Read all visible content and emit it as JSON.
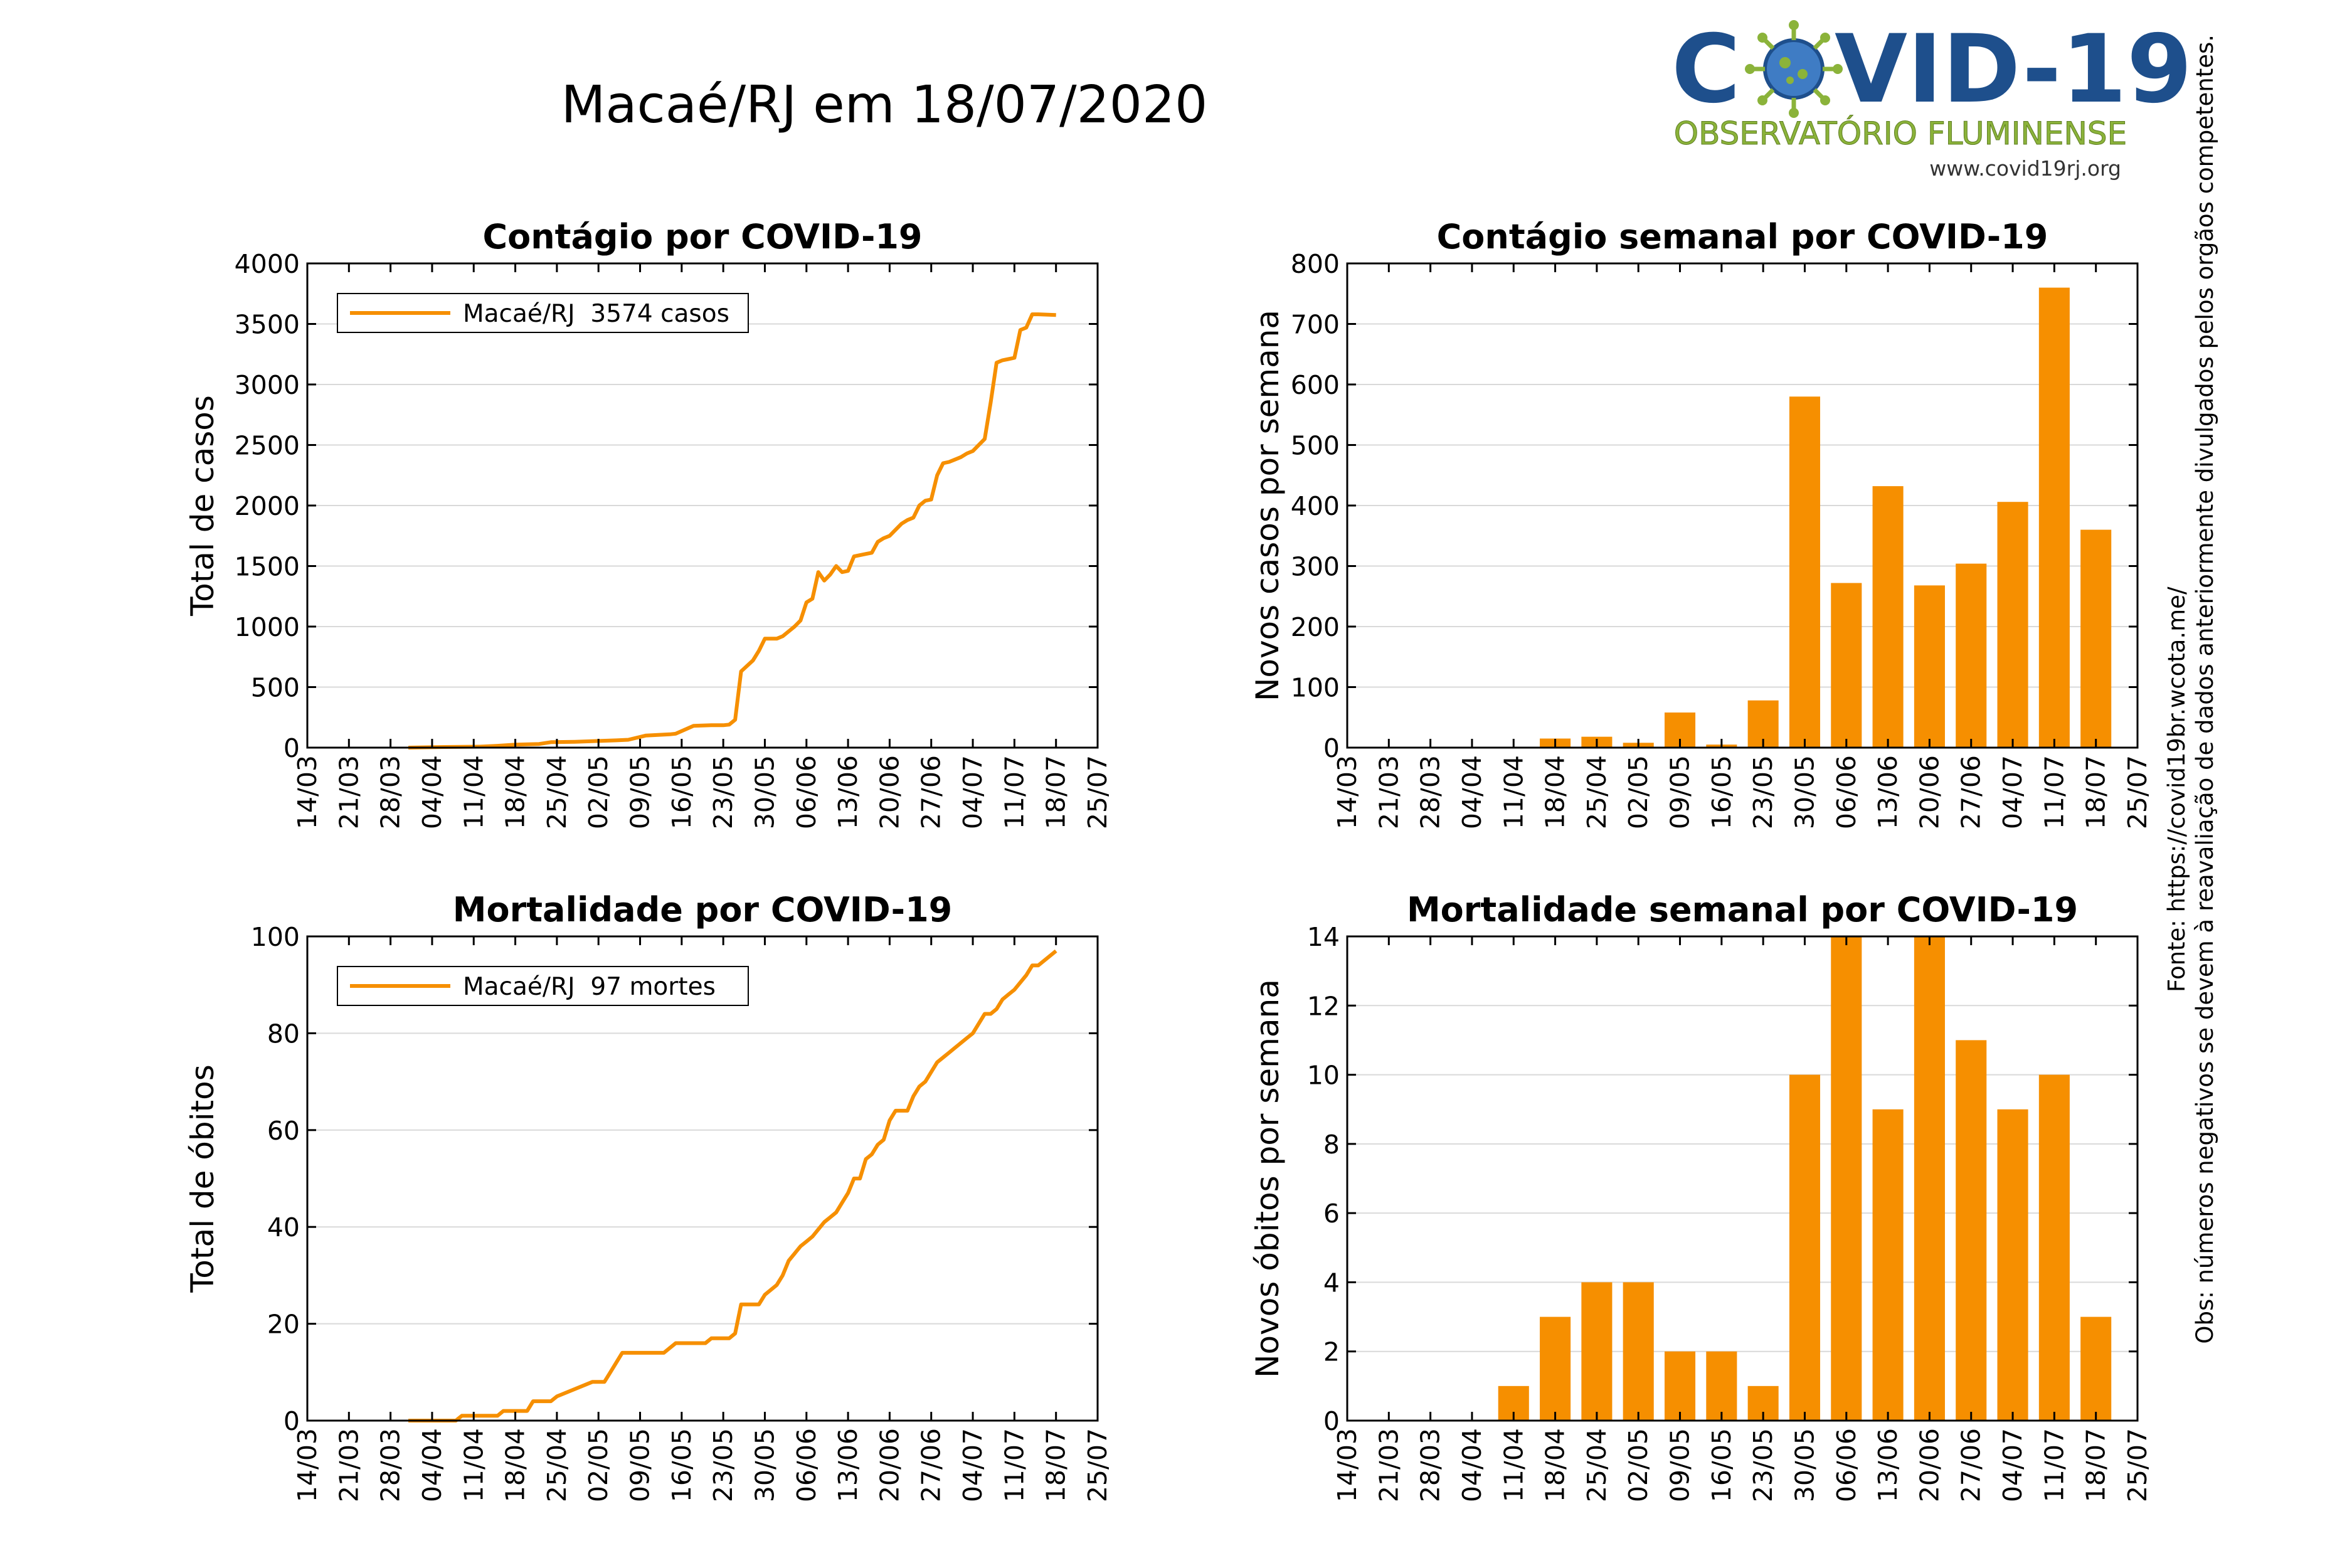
{
  "page": {
    "main_title": "Macaé/RJ em 18/07/2020",
    "logo": {
      "title_part1": "C",
      "title_part2": "VID-19",
      "subtitle": "OBSERVATÓRIO FLUMINENSE",
      "url": "www.covid19rj.org",
      "colors": {
        "blue": "#1e4f8c",
        "green": "#8bb33a"
      },
      "virus_icon": "coronavirus-icon"
    },
    "side_notes": {
      "line1": "Obs: números negativos se devem à reavaliação de dados anteriormente divulgados pelos orgãos competentes.",
      "line2": "Fonte: https://covid19br.wcota.me/"
    },
    "colors": {
      "series": "#f68f00",
      "grid": "#d9d9d9",
      "axes": "#000000"
    }
  },
  "chart_data": [
    {
      "id": "cases_total",
      "type": "line",
      "title": "Contágio por COVID-19",
      "ylabel": "Total de casos",
      "xlabel": "",
      "ylim": [
        0,
        4000
      ],
      "yticks": [
        0,
        500,
        1000,
        1500,
        2000,
        2500,
        3000,
        3500,
        4000
      ],
      "xlim": [
        "2020-03-14",
        "2020-07-25"
      ],
      "xtick_labels": [
        "14/03",
        "21/03",
        "28/03",
        "04/04",
        "11/04",
        "18/04",
        "25/04",
        "02/05",
        "09/05",
        "16/05",
        "23/05",
        "30/05",
        "06/06",
        "13/06",
        "20/06",
        "27/06",
        "04/07",
        "11/07",
        "18/07",
        "25/07"
      ],
      "grid": true,
      "legend": {
        "placement": "top-left",
        "label": "Macaé/RJ  3574 casos"
      },
      "series": [
        {
          "name": "Macaé/RJ  3574 casos",
          "x": [
            "2020-03-31",
            "2020-04-06",
            "2020-04-12",
            "2020-04-15",
            "2020-04-18",
            "2020-04-22",
            "2020-04-24",
            "2020-04-28",
            "2020-05-02",
            "2020-05-05",
            "2020-05-07",
            "2020-05-10",
            "2020-05-14",
            "2020-05-15",
            "2020-05-18",
            "2020-05-21",
            "2020-05-23",
            "2020-05-24",
            "2020-05-25",
            "2020-05-26",
            "2020-05-28",
            "2020-05-29",
            "2020-05-30",
            "2020-06-01",
            "2020-06-02",
            "2020-06-03",
            "2020-06-04",
            "2020-06-05",
            "2020-06-06",
            "2020-06-07",
            "2020-06-08",
            "2020-06-09",
            "2020-06-10",
            "2020-06-11",
            "2020-06-12",
            "2020-06-13",
            "2020-06-14",
            "2020-06-16",
            "2020-06-17",
            "2020-06-18",
            "2020-06-19",
            "2020-06-20",
            "2020-06-21",
            "2020-06-22",
            "2020-06-23",
            "2020-06-24",
            "2020-06-25",
            "2020-06-26",
            "2020-06-27",
            "2020-06-28",
            "2020-06-29",
            "2020-06-30",
            "2020-07-01",
            "2020-07-02",
            "2020-07-03",
            "2020-07-04",
            "2020-07-05",
            "2020-07-06",
            "2020-07-07",
            "2020-07-08",
            "2020-07-09",
            "2020-07-10",
            "2020-07-11",
            "2020-07-12",
            "2020-07-13",
            "2020-07-14",
            "2020-07-15",
            "2020-07-18"
          ],
          "y": [
            0,
            5,
            8,
            15,
            25,
            30,
            45,
            48,
            55,
            60,
            65,
            100,
            110,
            115,
            180,
            185,
            185,
            190,
            230,
            630,
            720,
            800,
            900,
            900,
            920,
            960,
            1000,
            1050,
            1200,
            1230,
            1450,
            1380,
            1430,
            1500,
            1450,
            1460,
            1580,
            1600,
            1610,
            1700,
            1730,
            1750,
            1800,
            1850,
            1880,
            1900,
            2000,
            2040,
            2050,
            2250,
            2350,
            2360,
            2380,
            2400,
            2430,
            2450,
            2500,
            2550,
            2850,
            3180,
            3200,
            3210,
            3220,
            3450,
            3470,
            3580,
            3580,
            3574
          ]
        }
      ]
    },
    {
      "id": "cases_weekly",
      "type": "bar",
      "title": "Contágio semanal por COVID-19",
      "ylabel": "Novos casos por semana",
      "xlabel": "",
      "ylim": [
        0,
        800
      ],
      "yticks": [
        0,
        100,
        200,
        300,
        400,
        500,
        600,
        700,
        800
      ],
      "xlim": [
        "2020-03-14",
        "2020-07-25"
      ],
      "xtick_labels": [
        "14/03",
        "21/03",
        "28/03",
        "04/04",
        "11/04",
        "18/04",
        "25/04",
        "02/05",
        "09/05",
        "16/05",
        "23/05",
        "30/05",
        "06/06",
        "13/06",
        "20/06",
        "27/06",
        "04/07",
        "11/07",
        "18/07",
        "25/07"
      ],
      "grid": true,
      "categories": [
        "18/04",
        "25/04",
        "02/05",
        "09/05",
        "16/05",
        "23/05",
        "30/05",
        "06/06",
        "13/06",
        "20/06",
        "27/06",
        "04/07",
        "11/07",
        "18/07"
      ],
      "values": [
        15,
        18,
        8,
        58,
        5,
        78,
        580,
        272,
        432,
        268,
        304,
        406,
        760,
        360
      ]
    },
    {
      "id": "deaths_total",
      "type": "line",
      "title": "Mortalidade por COVID-19",
      "ylabel": "Total de óbitos",
      "xlabel": "",
      "ylim": [
        0,
        100
      ],
      "yticks": [
        0,
        20,
        40,
        60,
        80,
        100
      ],
      "xlim": [
        "2020-03-14",
        "2020-07-25"
      ],
      "xtick_labels": [
        "14/03",
        "21/03",
        "28/03",
        "04/04",
        "11/04",
        "18/04",
        "25/04",
        "02/05",
        "09/05",
        "16/05",
        "23/05",
        "30/05",
        "06/06",
        "13/06",
        "20/06",
        "27/06",
        "04/07",
        "11/07",
        "18/07",
        "25/07"
      ],
      "grid": true,
      "legend": {
        "placement": "top-left",
        "label": "Macaé/RJ  97 mortes"
      },
      "series": [
        {
          "name": "Macaé/RJ  97 mortes",
          "x": [
            "2020-03-31",
            "2020-04-08",
            "2020-04-09",
            "2020-04-15",
            "2020-04-16",
            "2020-04-20",
            "2020-04-21",
            "2020-04-24",
            "2020-04-25",
            "2020-05-01",
            "2020-05-03",
            "2020-05-04",
            "2020-05-05",
            "2020-05-06",
            "2020-05-12",
            "2020-05-13",
            "2020-05-14",
            "2020-05-15",
            "2020-05-20",
            "2020-05-21",
            "2020-05-24",
            "2020-05-25",
            "2020-05-26",
            "2020-05-29",
            "2020-05-30",
            "2020-06-01",
            "2020-06-02",
            "2020-06-03",
            "2020-06-05",
            "2020-06-06",
            "2020-06-07",
            "2020-06-09",
            "2020-06-10",
            "2020-06-11",
            "2020-06-12",
            "2020-06-13",
            "2020-06-14",
            "2020-06-15",
            "2020-06-16",
            "2020-06-17",
            "2020-06-18",
            "2020-06-19",
            "2020-06-20",
            "2020-06-21",
            "2020-06-23",
            "2020-06-24",
            "2020-06-25",
            "2020-06-26",
            "2020-06-27",
            "2020-06-28",
            "2020-06-29",
            "2020-06-30",
            "2020-07-01",
            "2020-07-02",
            "2020-07-03",
            "2020-07-04",
            "2020-07-06",
            "2020-07-07",
            "2020-07-08",
            "2020-07-09",
            "2020-07-10",
            "2020-07-11",
            "2020-07-13",
            "2020-07-14",
            "2020-07-15",
            "2020-07-18"
          ],
          "y": [
            0,
            0,
            1,
            1,
            2,
            2,
            4,
            4,
            5,
            8,
            8,
            10,
            12,
            14,
            14,
            14,
            15,
            16,
            16,
            17,
            17,
            18,
            24,
            24,
            26,
            28,
            30,
            33,
            36,
            37,
            38,
            41,
            42,
            43,
            45,
            47,
            50,
            50,
            54,
            55,
            57,
            58,
            62,
            64,
            64,
            67,
            69,
            70,
            72,
            74,
            75,
            76,
            77,
            78,
            79,
            80,
            84,
            84,
            85,
            87,
            88,
            89,
            92,
            94,
            94,
            97
          ]
        }
      ]
    },
    {
      "id": "deaths_weekly",
      "type": "bar",
      "title": "Mortalidade semanal por COVID-19",
      "ylabel": "Novos óbitos por semana",
      "xlabel": "",
      "ylim": [
        0,
        14
      ],
      "yticks": [
        0,
        2,
        4,
        6,
        8,
        10,
        12,
        14
      ],
      "xlim": [
        "2020-03-14",
        "2020-07-25"
      ],
      "xtick_labels": [
        "14/03",
        "21/03",
        "28/03",
        "04/04",
        "11/04",
        "18/04",
        "25/04",
        "02/05",
        "09/05",
        "16/05",
        "23/05",
        "30/05",
        "06/06",
        "13/06",
        "20/06",
        "27/06",
        "04/07",
        "11/07",
        "18/07",
        "25/07"
      ],
      "grid": true,
      "categories": [
        "11/04",
        "18/04",
        "25/04",
        "02/05",
        "09/05",
        "16/05",
        "23/05",
        "30/05",
        "06/06",
        "13/06",
        "20/06",
        "27/06",
        "04/07",
        "11/07",
        "18/07"
      ],
      "values": [
        1,
        3,
        4,
        4,
        2,
        2,
        1,
        10,
        14,
        9,
        14,
        11,
        9,
        10,
        3
      ]
    }
  ]
}
